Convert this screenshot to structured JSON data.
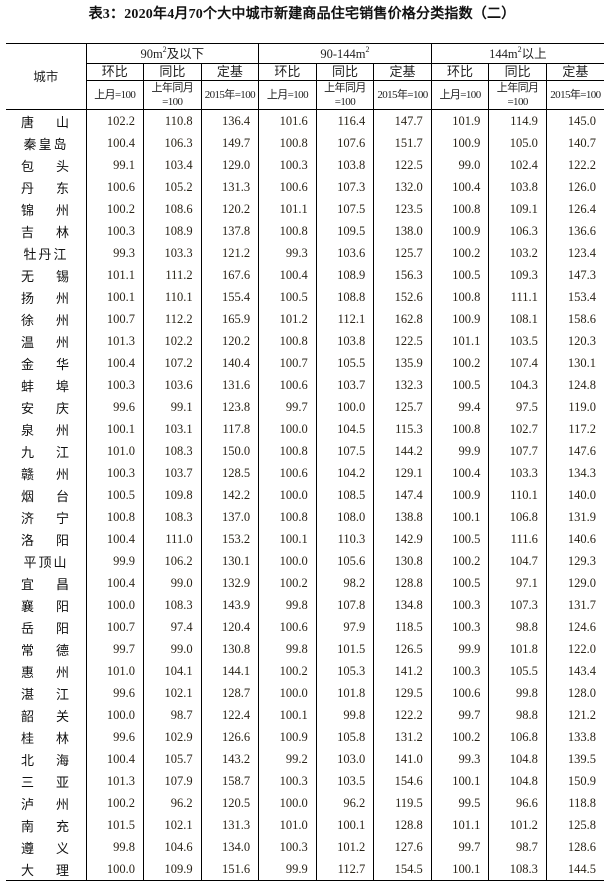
{
  "title": "表3：2020年4月70个大中城市新建商品住宅销售价格分类指数（二）",
  "header": {
    "city_label": "城市",
    "groups": [
      {
        "prefix": "90m",
        "sup": "2",
        "suffix": "及以下"
      },
      {
        "prefix": "90-144m",
        "sup": "2",
        "suffix": ""
      },
      {
        "prefix": "144m",
        "sup": "2",
        "suffix": "以上"
      }
    ],
    "sub_labels": [
      "环比",
      "同比",
      "定基"
    ],
    "base_labels": [
      "上月=100",
      "上年同月=100",
      "2015年=100"
    ]
  },
  "rows": [
    {
      "city": "唐山",
      "values": [
        "102.2",
        "110.8",
        "136.4",
        "101.6",
        "116.4",
        "147.7",
        "101.9",
        "114.9",
        "145.0"
      ]
    },
    {
      "city": "秦皇岛",
      "values": [
        "100.4",
        "106.3",
        "149.7",
        "100.8",
        "107.6",
        "151.7",
        "100.9",
        "105.0",
        "140.7"
      ]
    },
    {
      "city": "包头",
      "values": [
        "99.1",
        "103.4",
        "129.0",
        "100.3",
        "103.8",
        "122.5",
        "99.0",
        "102.4",
        "122.2"
      ]
    },
    {
      "city": "丹东",
      "values": [
        "100.6",
        "105.2",
        "131.3",
        "100.6",
        "107.3",
        "132.0",
        "100.4",
        "103.8",
        "126.0"
      ]
    },
    {
      "city": "锦州",
      "values": [
        "100.2",
        "108.6",
        "120.2",
        "101.1",
        "107.5",
        "123.5",
        "100.8",
        "109.1",
        "126.4"
      ]
    },
    {
      "city": "吉林",
      "values": [
        "100.3",
        "108.9",
        "137.8",
        "100.8",
        "109.5",
        "138.0",
        "100.9",
        "106.3",
        "136.6"
      ]
    },
    {
      "city": "牡丹江",
      "values": [
        "99.3",
        "103.3",
        "121.2",
        "99.3",
        "103.6",
        "125.7",
        "100.2",
        "103.2",
        "123.4"
      ]
    },
    {
      "city": "无锡",
      "values": [
        "101.1",
        "111.2",
        "167.6",
        "100.4",
        "108.9",
        "156.3",
        "100.5",
        "109.3",
        "147.3"
      ]
    },
    {
      "city": "扬州",
      "values": [
        "100.1",
        "110.1",
        "155.4",
        "100.5",
        "108.8",
        "152.6",
        "100.8",
        "111.1",
        "153.4"
      ]
    },
    {
      "city": "徐州",
      "values": [
        "100.7",
        "112.2",
        "165.9",
        "101.2",
        "112.1",
        "162.8",
        "100.9",
        "108.1",
        "158.6"
      ]
    },
    {
      "city": "温州",
      "values": [
        "101.3",
        "102.2",
        "120.2",
        "100.8",
        "103.8",
        "122.5",
        "101.1",
        "103.5",
        "120.3"
      ]
    },
    {
      "city": "金华",
      "values": [
        "100.4",
        "107.2",
        "140.4",
        "100.7",
        "105.5",
        "135.9",
        "100.2",
        "107.4",
        "130.1"
      ]
    },
    {
      "city": "蚌埠",
      "values": [
        "100.3",
        "103.6",
        "131.6",
        "100.6",
        "103.7",
        "132.3",
        "100.5",
        "104.3",
        "124.8"
      ]
    },
    {
      "city": "安庆",
      "values": [
        "99.6",
        "99.1",
        "123.8",
        "99.7",
        "100.0",
        "125.7",
        "99.4",
        "97.5",
        "119.0"
      ]
    },
    {
      "city": "泉州",
      "values": [
        "100.1",
        "103.1",
        "117.8",
        "100.0",
        "104.5",
        "115.3",
        "100.8",
        "102.7",
        "117.2"
      ]
    },
    {
      "city": "九江",
      "values": [
        "101.0",
        "108.3",
        "150.0",
        "100.8",
        "107.5",
        "144.2",
        "99.9",
        "107.7",
        "147.6"
      ]
    },
    {
      "city": "赣州",
      "values": [
        "100.3",
        "103.7",
        "128.5",
        "100.6",
        "104.2",
        "129.1",
        "100.4",
        "103.3",
        "134.3"
      ]
    },
    {
      "city": "烟台",
      "values": [
        "100.5",
        "109.8",
        "142.2",
        "100.0",
        "108.5",
        "147.4",
        "100.9",
        "110.1",
        "140.0"
      ]
    },
    {
      "city": "济宁",
      "values": [
        "100.8",
        "108.3",
        "137.0",
        "100.8",
        "108.0",
        "138.8",
        "100.1",
        "106.8",
        "131.9"
      ]
    },
    {
      "city": "洛阳",
      "values": [
        "100.4",
        "111.0",
        "153.2",
        "100.1",
        "110.3",
        "142.9",
        "100.5",
        "111.6",
        "140.6"
      ]
    },
    {
      "city": "平顶山",
      "values": [
        "99.9",
        "106.2",
        "130.1",
        "100.0",
        "105.6",
        "130.8",
        "100.2",
        "104.7",
        "129.3"
      ]
    },
    {
      "city": "宜昌",
      "values": [
        "100.4",
        "99.0",
        "132.9",
        "100.2",
        "98.2",
        "128.8",
        "100.5",
        "97.1",
        "129.0"
      ]
    },
    {
      "city": "襄阳",
      "values": [
        "100.0",
        "108.3",
        "143.9",
        "99.8",
        "107.8",
        "134.8",
        "100.3",
        "107.3",
        "131.7"
      ]
    },
    {
      "city": "岳阳",
      "values": [
        "100.7",
        "97.4",
        "120.4",
        "100.6",
        "97.9",
        "118.5",
        "100.3",
        "98.8",
        "124.6"
      ]
    },
    {
      "city": "常德",
      "values": [
        "99.7",
        "99.0",
        "130.8",
        "99.8",
        "101.5",
        "126.5",
        "99.9",
        "101.8",
        "122.0"
      ]
    },
    {
      "city": "惠州",
      "values": [
        "101.0",
        "104.1",
        "144.1",
        "100.2",
        "105.3",
        "141.2",
        "100.3",
        "105.5",
        "143.4"
      ]
    },
    {
      "city": "湛江",
      "values": [
        "99.6",
        "102.1",
        "128.7",
        "100.0",
        "101.8",
        "129.5",
        "100.6",
        "99.8",
        "128.0"
      ]
    },
    {
      "city": "韶关",
      "values": [
        "100.0",
        "98.7",
        "122.4",
        "100.1",
        "99.8",
        "122.2",
        "99.7",
        "98.8",
        "121.2"
      ]
    },
    {
      "city": "桂林",
      "values": [
        "99.6",
        "102.9",
        "126.6",
        "100.9",
        "105.8",
        "131.2",
        "100.2",
        "106.8",
        "133.8"
      ]
    },
    {
      "city": "北海",
      "values": [
        "100.4",
        "105.7",
        "143.2",
        "99.2",
        "103.0",
        "141.0",
        "99.3",
        "104.8",
        "139.5"
      ]
    },
    {
      "city": "三亚",
      "values": [
        "101.3",
        "107.9",
        "158.7",
        "100.3",
        "103.5",
        "154.6",
        "100.1",
        "104.8",
        "150.9"
      ]
    },
    {
      "city": "泸州",
      "values": [
        "100.2",
        "96.2",
        "120.5",
        "100.0",
        "96.2",
        "119.5",
        "99.5",
        "96.6",
        "118.8"
      ]
    },
    {
      "city": "南充",
      "values": [
        "101.5",
        "102.1",
        "131.3",
        "101.0",
        "100.1",
        "128.8",
        "101.1",
        "101.2",
        "125.8"
      ]
    },
    {
      "city": "遵义",
      "values": [
        "99.8",
        "104.6",
        "134.0",
        "100.3",
        "101.2",
        "127.6",
        "99.7",
        "98.7",
        "128.6"
      ]
    },
    {
      "city": "大理",
      "values": [
        "100.0",
        "109.9",
        "151.6",
        "99.9",
        "112.7",
        "154.5",
        "100.1",
        "108.3",
        "144.5"
      ]
    }
  ]
}
